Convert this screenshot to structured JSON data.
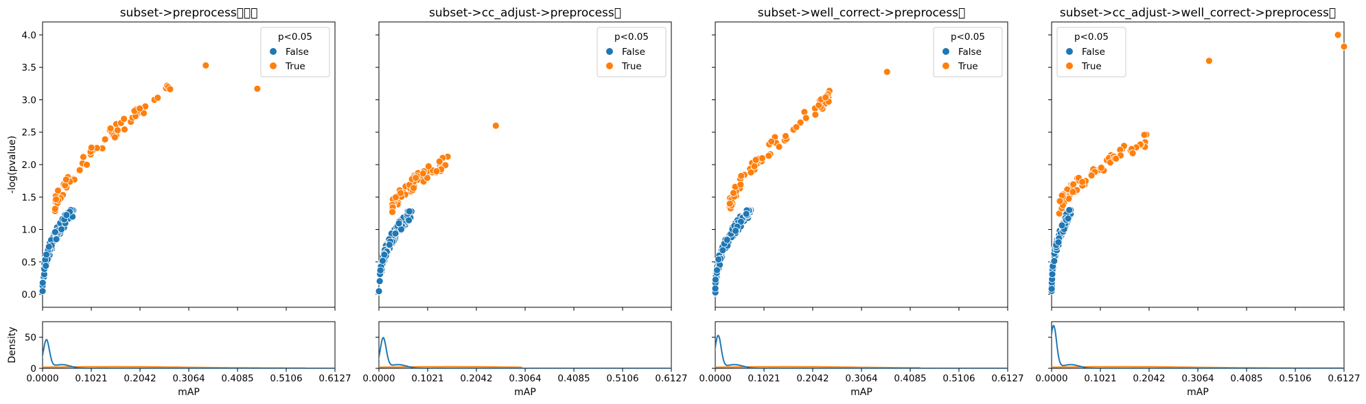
{
  "colors": {
    "false": "#1f77b4",
    "true": "#ff7f0e"
  },
  "shared": {
    "x_ticks": [
      "0.0000",
      "0.1021",
      "0.2042",
      "0.3064",
      "0.4085",
      "0.5106",
      "0.6127"
    ],
    "x_label": "mAP",
    "y_label": "-log(pvalue)",
    "y_ticks": [
      "0.0",
      "0.5",
      "1.0",
      "1.5",
      "2.0",
      "2.5",
      "3.0",
      "3.5",
      "4.0"
    ],
    "density_label": "Density",
    "density_ticks": [
      "0",
      "50"
    ],
    "legend_title": "p<0.05",
    "legend_entries": [
      "False",
      "True"
    ]
  },
  "chart_data": [
    {
      "type": "scatter",
      "title": "subset->preprocess\u0000\u0000\u0000",
      "xlabel": "mAP",
      "ylabel": "-log(pvalue)",
      "xlim": [
        0,
        0.6127
      ],
      "ylim": [
        -0.2,
        4.2
      ],
      "legend": "top-right",
      "false_max_x": 0.065,
      "false_max_y": 1.3,
      "true_main_end": [
        0.27,
        3.2
      ],
      "true_extra": [
        [
          0.342,
          3.53
        ],
        [
          0.45,
          3.17
        ]
      ],
      "density": {
        "false_peak": 45,
        "false_peak_x": 0.008,
        "true_end": 0.55
      }
    },
    {
      "type": "scatter",
      "title": "subset->cc_adjust->preprocess\u0000",
      "xlabel": "mAP",
      "ylabel": "",
      "xlim": [
        0,
        0.6127
      ],
      "ylim": [
        -0.2,
        4.2
      ],
      "legend": "top-right",
      "false_max_x": 0.07,
      "false_max_y": 1.28,
      "true_main_end": [
        0.15,
        2.1
      ],
      "true_extra": [
        [
          0.245,
          2.6
        ]
      ],
      "density": {
        "false_peak": 48,
        "false_peak_x": 0.009,
        "true_end": 0.3
      }
    },
    {
      "type": "scatter",
      "title": "subset->well_correct->preprocess\u0000",
      "xlabel": "mAP",
      "ylabel": "",
      "xlim": [
        0,
        0.6127
      ],
      "ylim": [
        -0.2,
        4.2
      ],
      "legend": "top-right",
      "false_max_x": 0.075,
      "false_max_y": 1.3,
      "true_main_end": [
        0.25,
        3.1
      ],
      "true_extra": [
        [
          0.36,
          3.43
        ]
      ],
      "density": {
        "false_peak": 52,
        "false_peak_x": 0.006,
        "true_end": 0.43
      }
    },
    {
      "type": "scatter",
      "title": "subset->cc_adjust->well_correct->preprocess\u0000",
      "xlabel": "mAP",
      "ylabel": "",
      "xlim": [
        0,
        0.6127
      ],
      "ylim": [
        -0.2,
        4.2
      ],
      "legend": "top-left",
      "false_max_x": 0.04,
      "false_max_y": 1.3,
      "true_main_end": [
        0.2,
        2.4
      ],
      "true_extra": [
        [
          0.33,
          3.6
        ],
        [
          0.6,
          4.0
        ],
        [
          0.6127,
          3.82
        ]
      ],
      "density": {
        "false_peak": 68,
        "false_peak_x": 0.004,
        "true_end": 0.6127
      }
    }
  ]
}
